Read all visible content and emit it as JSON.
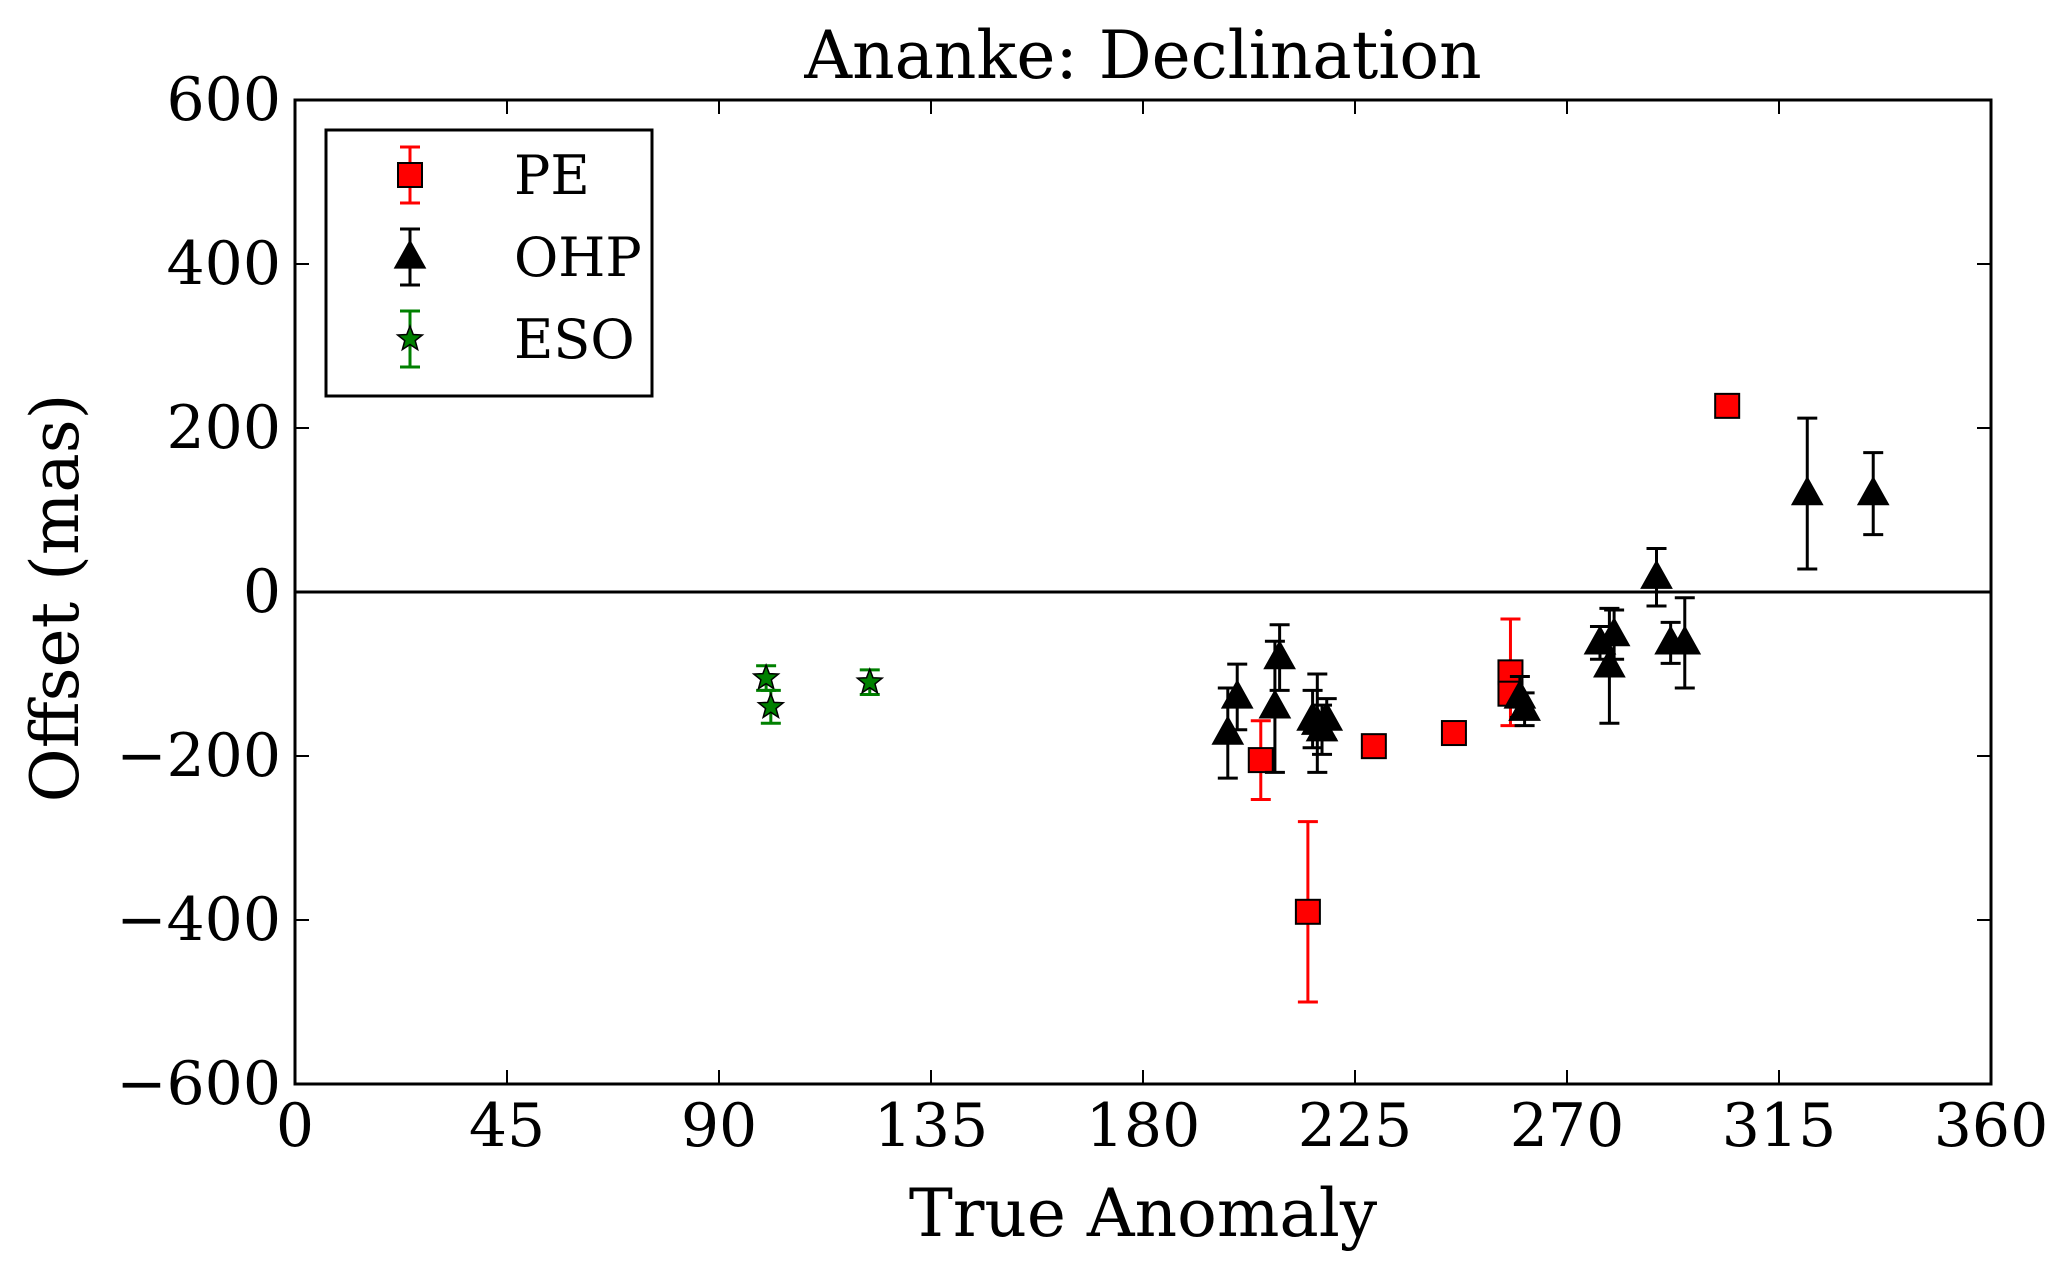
{
  "chart_data": {
    "type": "scatter",
    "title": "Ananke: Declination",
    "xlabel": "True Anomaly",
    "ylabel": "Offset (mas)",
    "xlim": [
      0,
      360
    ],
    "ylim": [
      -600,
      600
    ],
    "xticks": [
      0,
      45,
      90,
      135,
      180,
      225,
      270,
      315,
      360
    ],
    "yticks": [
      -600,
      -400,
      -200,
      0,
      200,
      400,
      600
    ],
    "xtick_labels": [
      "0",
      "45",
      "90",
      "135",
      "180",
      "225",
      "270",
      "315",
      "360"
    ],
    "ytick_labels": [
      "−600",
      "−400",
      "−200",
      "0",
      "200",
      "400",
      "600"
    ],
    "grid": false,
    "reference_line_y": 0,
    "legend_position": "top-left",
    "series": [
      {
        "name": "PE",
        "marker": "square",
        "color": "#ff0000",
        "errorbar_color": "#ff0000",
        "points": [
          {
            "x": 205,
            "y": -205,
            "err": 48
          },
          {
            "x": 215,
            "y": -390,
            "err": 110
          },
          {
            "x": 229,
            "y": -188,
            "err": 0
          },
          {
            "x": 246,
            "y": -172,
            "err": 0
          },
          {
            "x": 258,
            "y": -98,
            "err": 65
          },
          {
            "x": 258,
            "y": -124,
            "err": 0
          },
          {
            "x": 304,
            "y": 227,
            "err": 0
          }
        ]
      },
      {
        "name": "OHP",
        "marker": "triangle",
        "color": "#000000",
        "errorbar_color": "#000000",
        "points": [
          {
            "x": 198,
            "y": -172,
            "err": 55
          },
          {
            "x": 200,
            "y": -128,
            "err": 40
          },
          {
            "x": 208,
            "y": -140,
            "err": 80
          },
          {
            "x": 209,
            "y": -80,
            "err": 40
          },
          {
            "x": 216,
            "y": -155,
            "err": 35
          },
          {
            "x": 217,
            "y": -160,
            "err": 60
          },
          {
            "x": 218,
            "y": -168,
            "err": 30
          },
          {
            "x": 219,
            "y": -155,
            "err": 25
          },
          {
            "x": 260,
            "y": -128,
            "err": 25
          },
          {
            "x": 261,
            "y": -143,
            "err": 20
          },
          {
            "x": 277,
            "y": -62,
            "err": 20
          },
          {
            "x": 279,
            "y": -90,
            "err": 70
          },
          {
            "x": 280,
            "y": -52,
            "err": 30
          },
          {
            "x": 289,
            "y": 18,
            "err": 35
          },
          {
            "x": 292,
            "y": -62,
            "err": 25
          },
          {
            "x": 295,
            "y": -62,
            "err": 55
          },
          {
            "x": 321,
            "y": 120,
            "err": 92
          },
          {
            "x": 335,
            "y": 120,
            "err": 50
          }
        ]
      },
      {
        "name": "ESO",
        "marker": "star",
        "color": "#008000",
        "errorbar_color": "#008000",
        "points": [
          {
            "x": 100,
            "y": -105,
            "err": 15
          },
          {
            "x": 101,
            "y": -140,
            "err": 20
          },
          {
            "x": 122,
            "y": -110,
            "err": 15
          }
        ]
      }
    ]
  }
}
